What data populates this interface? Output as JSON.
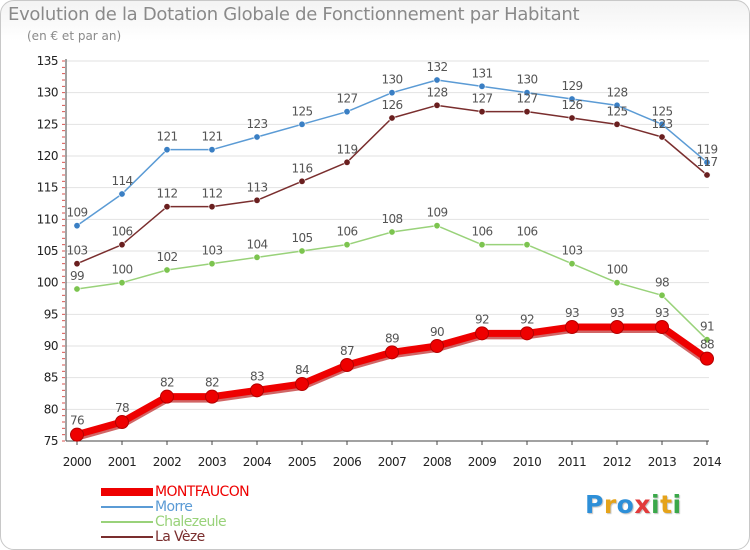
{
  "title": "Evolution de la Dotation Globale de Fonctionnement par Habitant",
  "subtitle": "(en € et par an)",
  "logo": {
    "letters": [
      "P",
      "r",
      "o",
      "x",
      "i",
      "t",
      "i"
    ]
  },
  "colors": {
    "grid": "#e2e2e2",
    "axis": "#444444",
    "tick_text": "#222222",
    "value_text": "#555555",
    "minor_tick": "#d9534f"
  },
  "chart_data": {
    "type": "line",
    "title": "Evolution de la Dotation Globale de Fonctionnement par Habitant",
    "subtitle": "(en € et par an)",
    "xlabel": "",
    "ylabel": "",
    "x": [
      "2000",
      "2001",
      "2002",
      "2003",
      "2004",
      "2005",
      "2006",
      "2007",
      "2008",
      "2009",
      "2010",
      "2011",
      "2012",
      "2013",
      "2014"
    ],
    "ylim": [
      75,
      135
    ],
    "yticks": [
      75,
      80,
      85,
      90,
      95,
      100,
      105,
      110,
      115,
      120,
      125,
      130,
      135
    ],
    "grid": true,
    "legend_position": "bottom-left",
    "series": [
      {
        "name": "Morre",
        "color": "#5b9bd5",
        "marker_color": "#3a7fc4",
        "emphasis": false,
        "values": [
          109,
          114,
          121,
          121,
          123,
          125,
          127,
          130,
          132,
          131,
          130,
          129,
          128,
          125,
          119
        ]
      },
      {
        "name": "La Vèze",
        "color": "#7a2e2e",
        "marker_color": "#6a1f1f",
        "emphasis": false,
        "values": [
          103,
          106,
          112,
          112,
          113,
          116,
          119,
          126,
          128,
          127,
          127,
          126,
          125,
          123,
          117
        ]
      },
      {
        "name": "Chalezeule",
        "color": "#99d27a",
        "marker_color": "#7cc44f",
        "emphasis": false,
        "values": [
          99,
          100,
          102,
          103,
          104,
          105,
          106,
          108,
          109,
          106,
          106,
          103,
          100,
          98,
          91
        ]
      },
      {
        "name": "MONTFAUCON",
        "color": "#ee0000",
        "marker_color": "#ee0000",
        "emphasis": true,
        "values": [
          76,
          78,
          82,
          82,
          83,
          84,
          87,
          89,
          90,
          92,
          92,
          93,
          93,
          93,
          88
        ]
      }
    ],
    "legend_order": [
      "MONTFAUCON",
      "Morre",
      "Chalezeule",
      "La Vèze"
    ]
  }
}
